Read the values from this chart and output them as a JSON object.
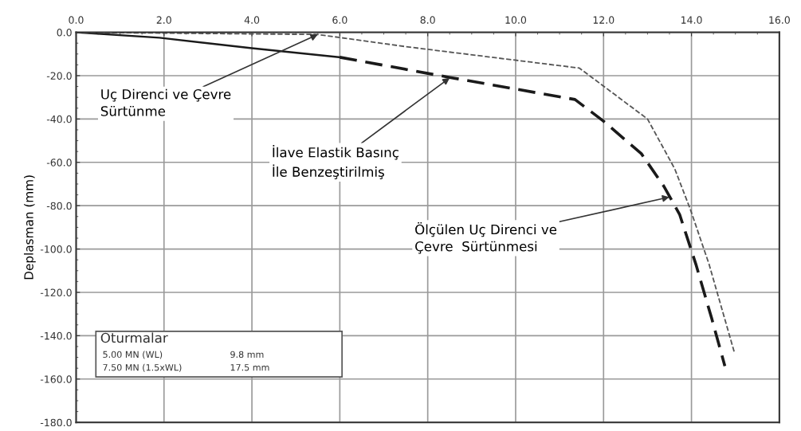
{
  "chart_data": {
    "type": "line",
    "ylabel": "Deplasman (mm)",
    "xlim": [
      0,
      16
    ],
    "xticks": [
      {
        "value": 0,
        "label": "0.0"
      },
      {
        "value": 2,
        "label": "2.0"
      },
      {
        "value": 4,
        "label": "4.0"
      },
      {
        "value": 6,
        "label": "6.0"
      },
      {
        "value": 8,
        "label": "8.0"
      },
      {
        "value": 10,
        "label": "10.0"
      },
      {
        "value": 12,
        "label": "12.0"
      },
      {
        "value": 14,
        "label": "14.0"
      },
      {
        "value": 16,
        "label": "16.0"
      }
    ],
    "ylim": [
      -180,
      0
    ],
    "yticks": [
      {
        "value": 0,
        "label": "0.0"
      },
      {
        "value": -20,
        "label": "-20.0"
      },
      {
        "value": -40,
        "label": "-40.0"
      },
      {
        "value": -60,
        "label": "-60.0"
      },
      {
        "value": -80,
        "label": "-80.0"
      },
      {
        "value": -100,
        "label": "-100.0"
      },
      {
        "value": -120,
        "label": "-120.0"
      },
      {
        "value": -140,
        "label": "-140.0"
      },
      {
        "value": -160,
        "label": "-160.0"
      },
      {
        "value": -180,
        "label": "-180.0"
      }
    ],
    "grid": true,
    "legend": false,
    "marker": "none",
    "series": [
      {
        "color": "#1a1a1a",
        "line_style": "solid",
        "x": [
          0,
          1.9,
          4.0,
          6.0
        ],
        "values": [
          0,
          -2.5,
          -7.3,
          -11.5
        ]
      },
      {
        "color": "#1a1a1a",
        "line_style": "dashed",
        "x": [
          6.0,
          8.5,
          11.35,
          12.0,
          12.86,
          13.37,
          13.73,
          14.1,
          14.46,
          14.76
        ],
        "values": [
          -11.5,
          -20.8,
          -31,
          -41,
          -56,
          -71,
          -84,
          -107,
          -132,
          -154
        ]
      },
      {
        "color": "#555555",
        "line_style": "dotted",
        "x": [
          0,
          5.5,
          7.5,
          11.45,
          13.0,
          13.62,
          13.98,
          14.4,
          14.98
        ],
        "values": [
          0,
          -1,
          -6.6,
          -16.5,
          -40,
          -63,
          -82,
          -107,
          -148
        ]
      }
    ],
    "annotations": [
      {
        "text": "Uç Direnci ve Çevre\nSürtünme",
        "x": 5.5,
        "y": -1
      },
      {
        "text": "İlave Elastik Basınç\nİle Benzeştirilmiş",
        "x": 8.5,
        "y": -21
      },
      {
        "text": "Ölçülen Uç Direnci ve\nÇevre  Sürtünmesi",
        "x": 13.5,
        "y": -76
      },
      "Oturmalar",
      "5.00 MN (WL)",
      "9.8 mm",
      "7.50 MN (1.5xWL)",
      "17.5 mm"
    ]
  }
}
